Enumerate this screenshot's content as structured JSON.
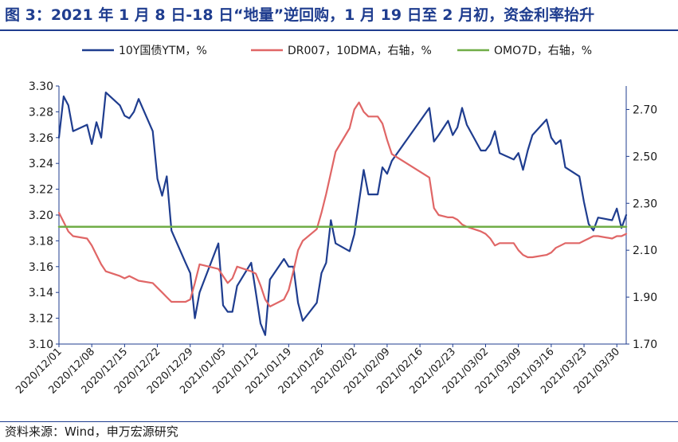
{
  "figure_title": "图 3：2021 年 1 月 8 日-18 日“地量”逆回购，1 月 19 日至 2 月初，资金利率抬升",
  "source_note": "资料来源：Wind，申万宏源研究",
  "chart_data": {
    "type": "line",
    "title": "",
    "x_ticks": [
      "2020/12/01",
      "2020/12/08",
      "2020/12/15",
      "2020/12/22",
      "2020/12/29",
      "2021/01/05",
      "2021/01/12",
      "2021/01/19",
      "2021/01/26",
      "2021/02/02",
      "2021/02/09",
      "2021/02/16",
      "2021/02/23",
      "2021/03/02",
      "2021/03/09",
      "2021/03/16",
      "2021/03/23",
      "2021/03/30"
    ],
    "x_range": [
      "2020/12/01",
      "2021/04/01"
    ],
    "y_left": {
      "range": [
        3.1,
        3.3
      ],
      "ticks": [
        "3.10",
        "3.12",
        "3.14",
        "3.16",
        "3.18",
        "3.20",
        "3.22",
        "3.24",
        "3.26",
        "3.28",
        "3.30"
      ]
    },
    "y_right": {
      "range": [
        1.7,
        2.8
      ],
      "ticks": [
        "1.70",
        "1.90",
        "2.10",
        "2.30",
        "2.50",
        "2.70"
      ]
    },
    "grid": false,
    "legend_position": "top",
    "series": [
      {
        "name": "10Y国债YTM，%",
        "axis": "left",
        "color": "#1f3d8f",
        "points": [
          [
            "2020/12/01",
            3.26
          ],
          [
            "2020/12/02",
            3.292
          ],
          [
            "2020/12/03",
            3.285
          ],
          [
            "2020/12/04",
            3.265
          ],
          [
            "2020/12/07",
            3.27
          ],
          [
            "2020/12/08",
            3.255
          ],
          [
            "2020/12/09",
            3.272
          ],
          [
            "2020/12/10",
            3.26
          ],
          [
            "2020/12/11",
            3.295
          ],
          [
            "2020/12/14",
            3.285
          ],
          [
            "2020/12/15",
            3.277
          ],
          [
            "2020/12/16",
            3.275
          ],
          [
            "2020/12/17",
            3.28
          ],
          [
            "2020/12/18",
            3.29
          ],
          [
            "2020/12/21",
            3.265
          ],
          [
            "2020/12/22",
            3.228
          ],
          [
            "2020/12/23",
            3.215
          ],
          [
            "2020/12/24",
            3.23
          ],
          [
            "2020/12/25",
            3.188
          ],
          [
            "2020/12/28",
            3.163
          ],
          [
            "2020/12/29",
            3.155
          ],
          [
            "2020/12/30",
            3.12
          ],
          [
            "2020/12/31",
            3.14
          ],
          [
            "2021/01/04",
            3.178
          ],
          [
            "2021/01/05",
            3.13
          ],
          [
            "2021/01/06",
            3.125
          ],
          [
            "2021/01/07",
            3.125
          ],
          [
            "2021/01/08",
            3.145
          ],
          [
            "2021/01/11",
            3.163
          ],
          [
            "2021/01/12",
            3.14
          ],
          [
            "2021/01/13",
            3.116
          ],
          [
            "2021/01/14",
            3.107
          ],
          [
            "2021/01/15",
            3.15
          ],
          [
            "2021/01/18",
            3.166
          ],
          [
            "2021/01/19",
            3.16
          ],
          [
            "2021/01/20",
            3.16
          ],
          [
            "2021/01/21",
            3.132
          ],
          [
            "2021/01/22",
            3.118
          ],
          [
            "2021/01/25",
            3.132
          ],
          [
            "2021/01/26",
            3.155
          ],
          [
            "2021/01/27",
            3.163
          ],
          [
            "2021/01/28",
            3.196
          ],
          [
            "2021/01/29",
            3.178
          ],
          [
            "2021/02/01",
            3.172
          ],
          [
            "2021/02/02",
            3.185
          ],
          [
            "2021/02/03",
            3.21
          ],
          [
            "2021/02/04",
            3.235
          ],
          [
            "2021/02/05",
            3.216
          ],
          [
            "2021/02/07",
            3.216
          ],
          [
            "2021/02/08",
            3.237
          ],
          [
            "2021/02/09",
            3.232
          ],
          [
            "2021/02/10",
            3.242
          ],
          [
            "2021/02/18",
            3.283
          ],
          [
            "2021/02/19",
            3.257
          ],
          [
            "2021/02/20",
            3.262
          ],
          [
            "2021/02/22",
            3.273
          ],
          [
            "2021/02/23",
            3.262
          ],
          [
            "2021/02/24",
            3.268
          ],
          [
            "2021/02/25",
            3.283
          ],
          [
            "2021/02/26",
            3.27
          ],
          [
            "2021/03/01",
            3.25
          ],
          [
            "2021/03/02",
            3.25
          ],
          [
            "2021/03/03",
            3.255
          ],
          [
            "2021/03/04",
            3.265
          ],
          [
            "2021/03/05",
            3.248
          ],
          [
            "2021/03/08",
            3.243
          ],
          [
            "2021/03/09",
            3.248
          ],
          [
            "2021/03/10",
            3.235
          ],
          [
            "2021/03/11",
            3.25
          ],
          [
            "2021/03/12",
            3.262
          ],
          [
            "2021/03/15",
            3.274
          ],
          [
            "2021/03/16",
            3.26
          ],
          [
            "2021/03/17",
            3.255
          ],
          [
            "2021/03/18",
            3.258
          ],
          [
            "2021/03/19",
            3.237
          ],
          [
            "2021/03/22",
            3.23
          ],
          [
            "2021/03/23",
            3.21
          ],
          [
            "2021/03/24",
            3.193
          ],
          [
            "2021/03/25",
            3.188
          ],
          [
            "2021/03/26",
            3.198
          ],
          [
            "2021/03/29",
            3.196
          ],
          [
            "2021/03/30",
            3.205
          ],
          [
            "2021/03/31",
            3.19
          ],
          [
            "2021/04/01",
            3.2
          ]
        ]
      },
      {
        "name": "DR007，10DMA，右轴，%",
        "axis": "right",
        "color": "#e06666",
        "points": [
          [
            "2020/12/01",
            2.26
          ],
          [
            "2020/12/02",
            2.22
          ],
          [
            "2020/12/03",
            2.18
          ],
          [
            "2020/12/04",
            2.16
          ],
          [
            "2020/12/07",
            2.15
          ],
          [
            "2020/12/08",
            2.12
          ],
          [
            "2020/12/09",
            2.08
          ],
          [
            "2020/12/10",
            2.04
          ],
          [
            "2020/12/11",
            2.01
          ],
          [
            "2020/12/14",
            1.99
          ],
          [
            "2020/12/15",
            1.98
          ],
          [
            "2020/12/16",
            1.99
          ],
          [
            "2020/12/17",
            1.98
          ],
          [
            "2020/12/18",
            1.97
          ],
          [
            "2020/12/21",
            1.96
          ],
          [
            "2020/12/22",
            1.94
          ],
          [
            "2020/12/23",
            1.92
          ],
          [
            "2020/12/24",
            1.9
          ],
          [
            "2020/12/25",
            1.88
          ],
          [
            "2020/12/28",
            1.88
          ],
          [
            "2020/12/29",
            1.89
          ],
          [
            "2020/12/30",
            1.96
          ],
          [
            "2020/12/31",
            2.04
          ],
          [
            "2021/01/04",
            2.02
          ],
          [
            "2021/01/05",
            1.99
          ],
          [
            "2021/01/06",
            1.96
          ],
          [
            "2021/01/07",
            1.98
          ],
          [
            "2021/01/08",
            2.03
          ],
          [
            "2021/01/11",
            2.01
          ],
          [
            "2021/01/12",
            2.0
          ],
          [
            "2021/01/13",
            1.95
          ],
          [
            "2021/01/14",
            1.89
          ],
          [
            "2021/01/15",
            1.86
          ],
          [
            "2021/01/18",
            1.89
          ],
          [
            "2021/01/19",
            1.93
          ],
          [
            "2021/01/20",
            2.01
          ],
          [
            "2021/01/21",
            2.1
          ],
          [
            "2021/01/22",
            2.14
          ],
          [
            "2021/01/25",
            2.19
          ],
          [
            "2021/01/26",
            2.26
          ],
          [
            "2021/01/27",
            2.34
          ],
          [
            "2021/01/28",
            2.43
          ],
          [
            "2021/01/29",
            2.52
          ],
          [
            "2021/02/01",
            2.62
          ],
          [
            "2021/02/02",
            2.7
          ],
          [
            "2021/02/03",
            2.73
          ],
          [
            "2021/02/04",
            2.69
          ],
          [
            "2021/02/05",
            2.67
          ],
          [
            "2021/02/07",
            2.67
          ],
          [
            "2021/02/08",
            2.64
          ],
          [
            "2021/02/09",
            2.57
          ],
          [
            "2021/02/10",
            2.51
          ],
          [
            "2021/02/18",
            2.41
          ],
          [
            "2021/02/19",
            2.28
          ],
          [
            "2021/02/20",
            2.25
          ],
          [
            "2021/02/22",
            2.24
          ],
          [
            "2021/02/23",
            2.24
          ],
          [
            "2021/02/24",
            2.23
          ],
          [
            "2021/02/25",
            2.21
          ],
          [
            "2021/02/26",
            2.2
          ],
          [
            "2021/03/01",
            2.18
          ],
          [
            "2021/03/02",
            2.17
          ],
          [
            "2021/03/03",
            2.15
          ],
          [
            "2021/03/04",
            2.12
          ],
          [
            "2021/03/05",
            2.13
          ],
          [
            "2021/03/08",
            2.13
          ],
          [
            "2021/03/09",
            2.1
          ],
          [
            "2021/03/10",
            2.08
          ],
          [
            "2021/03/11",
            2.07
          ],
          [
            "2021/03/12",
            2.07
          ],
          [
            "2021/03/15",
            2.08
          ],
          [
            "2021/03/16",
            2.09
          ],
          [
            "2021/03/17",
            2.11
          ],
          [
            "2021/03/18",
            2.12
          ],
          [
            "2021/03/19",
            2.13
          ],
          [
            "2021/03/22",
            2.13
          ],
          [
            "2021/03/23",
            2.14
          ],
          [
            "2021/03/24",
            2.15
          ],
          [
            "2021/03/25",
            2.16
          ],
          [
            "2021/03/26",
            2.16
          ],
          [
            "2021/03/29",
            2.15
          ],
          [
            "2021/03/30",
            2.16
          ],
          [
            "2021/03/31",
            2.16
          ],
          [
            "2021/04/01",
            2.17
          ]
        ]
      },
      {
        "name": "OMO7D，右轴，%",
        "axis": "right",
        "color": "#70ad47",
        "points": [
          [
            "2020/12/01",
            2.2
          ],
          [
            "2021/04/01",
            2.2
          ]
        ]
      }
    ]
  }
}
